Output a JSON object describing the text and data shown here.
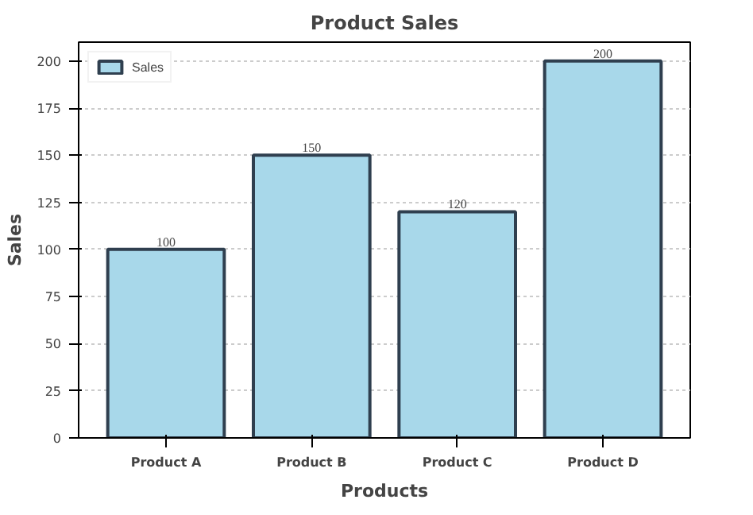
{
  "chart_data": {
    "type": "bar",
    "title": "Product Sales",
    "xlabel": "Products",
    "ylabel": "Sales",
    "categories": [
      "Product A",
      "Product B",
      "Product C",
      "Product D"
    ],
    "series": [
      {
        "name": "Sales",
        "color": "#a8d8ea",
        "values": [
          100,
          150,
          120,
          200
        ]
      }
    ],
    "ylim": [
      0,
      210
    ],
    "yticks": [
      0,
      25,
      50,
      75,
      100,
      125,
      150,
      175,
      200
    ],
    "grid": "y",
    "legend": "top left",
    "data_labels": true
  }
}
